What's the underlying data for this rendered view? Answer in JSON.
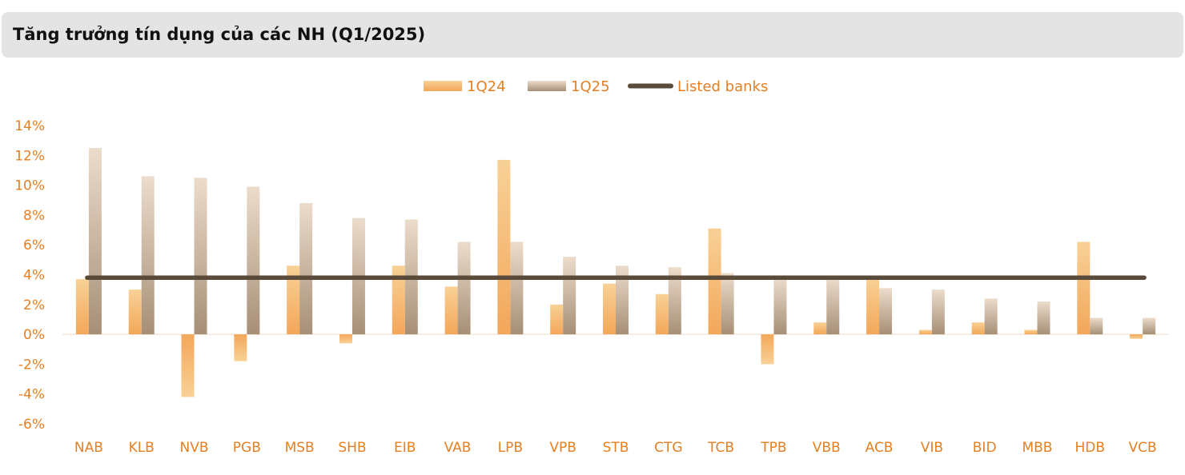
{
  "header": {
    "title": "Tăng trưởng tín dụng của các NH (Q1/2025)"
  },
  "colors": {
    "series_1q24": "#f4b26a",
    "series_1q25": "#b39e86",
    "line": "#5a4a3a",
    "axis_text": "#e57f22",
    "title_bg": "#e4e4e4"
  },
  "chart_data": {
    "type": "bar",
    "title": "Tăng trưởng tín dụng của các NH (Q1/2025)",
    "xlabel": "",
    "ylabel": "",
    "ylim": [
      -0.06,
      0.14
    ],
    "yticks": [
      0.14,
      0.12,
      0.1,
      0.08,
      0.06,
      0.04,
      0.02,
      0.0,
      -0.02,
      -0.04,
      -0.06
    ],
    "ytick_labels": [
      "14%",
      "12%",
      "10%",
      "8%",
      "6%",
      "4%",
      "2%",
      "0%",
      "-2%",
      "-4%",
      "-6%"
    ],
    "categories": [
      "NAB",
      "KLB",
      "NVB",
      "PGB",
      "MSB",
      "SHB",
      "EIB",
      "VAB",
      "LPB",
      "VPB",
      "STB",
      "CTG",
      "TCB",
      "TPB",
      "VBB",
      "ACB",
      "VIB",
      "BID",
      "MBB",
      "HDB",
      "VCB"
    ],
    "series": [
      {
        "name": "1Q24",
        "kind": "bar",
        "values": [
          0.037,
          0.03,
          -0.042,
          -0.018,
          0.046,
          -0.006,
          0.046,
          0.032,
          0.117,
          0.02,
          0.034,
          0.027,
          0.071,
          -0.02,
          0.008,
          0.038,
          0.003,
          0.008,
          0.003,
          0.062,
          -0.003
        ]
      },
      {
        "name": "1Q25",
        "kind": "bar",
        "values": [
          0.125,
          0.106,
          0.105,
          0.099,
          0.088,
          0.078,
          0.077,
          0.062,
          0.062,
          0.052,
          0.046,
          0.045,
          0.041,
          0.038,
          0.038,
          0.031,
          0.03,
          0.024,
          0.022,
          0.011,
          0.011
        ]
      },
      {
        "name": "Listed banks",
        "kind": "line",
        "value": 0.038
      }
    ],
    "legend": {
      "position": "top-center",
      "entries": [
        "1Q24",
        "1Q25",
        "Listed banks"
      ]
    },
    "grid": false
  }
}
